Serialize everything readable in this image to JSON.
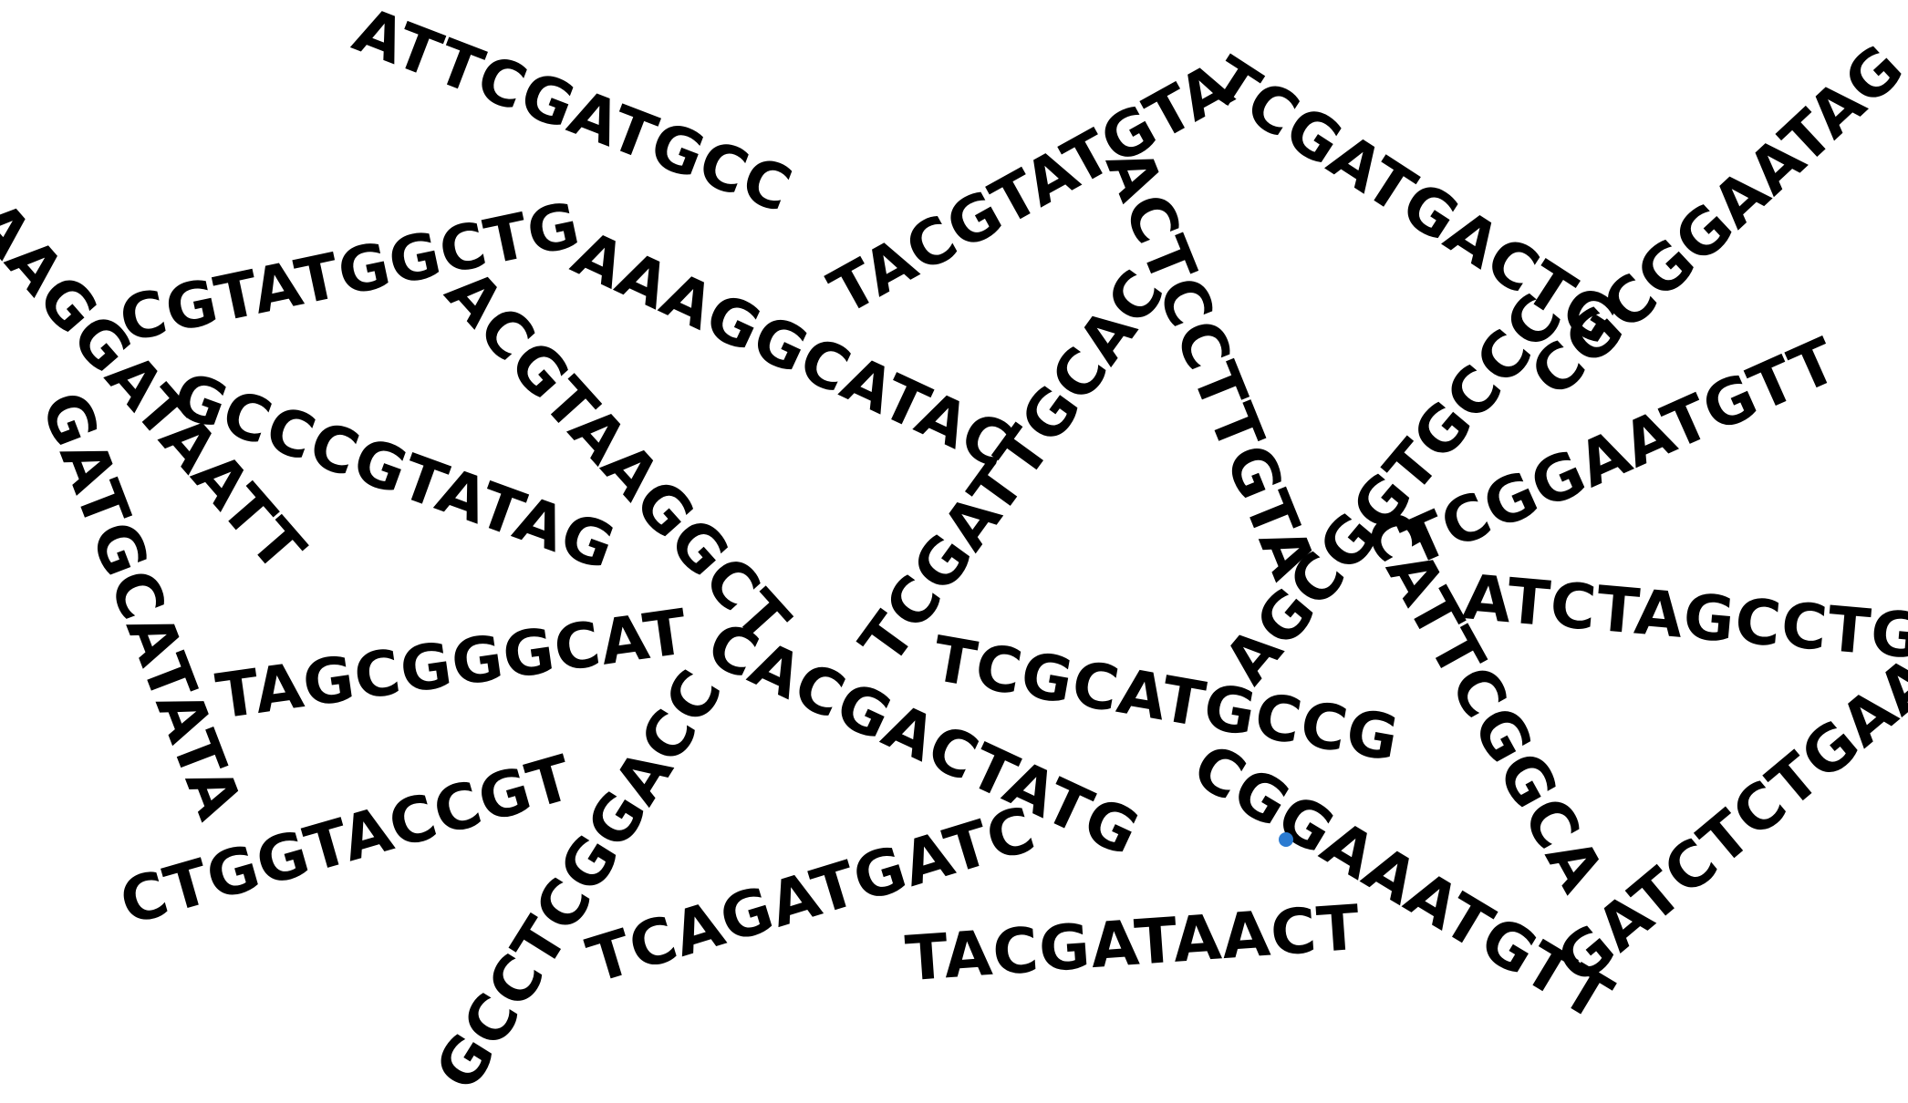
{
  "colors": {
    "text": "#000000",
    "marker": "#2b7bd1",
    "background": "#ffffff"
  },
  "sequences": [
    "ATTCGATGCC",
    "TACGTATGTA",
    "TCGATGACTG",
    "CGCGGAATAG",
    "AAGGATAATT",
    "CGTATGGCTG",
    "AAAGGCATAC",
    "ACTCCTTGTA",
    "ACGTAAGGCT",
    "GCCCGTATAG",
    "GATGCATATA",
    "TCGATTGCAC",
    "AGCGGTGCCC",
    "TCGGAATGTT",
    "ATCTAGCCTG",
    "CATTCGGCA",
    "TAGCGGGCAT",
    "CACGACTATG",
    "TCGCATGCCG",
    "CTGGTACCGT",
    "GCCTCGGACC",
    "TCAGATGATC",
    "CGGAAATGTT",
    "GATCTCTGAA",
    "TACGATAACT"
  ]
}
